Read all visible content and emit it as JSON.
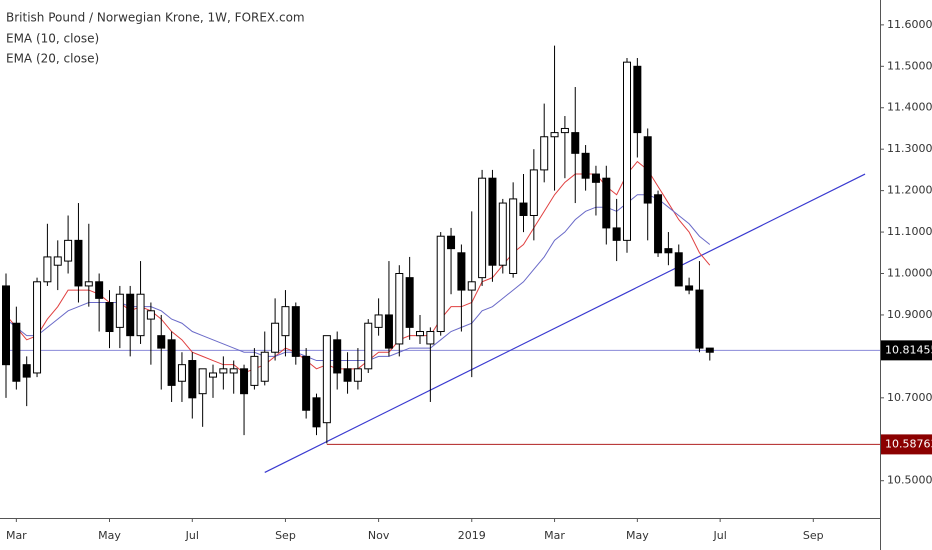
{
  "chart_data": {
    "type": "candlestick",
    "title": "British Pound / Norwegian Krone, 1W, FOREX.com",
    "categories": [
      null,
      "Mar",
      null,
      null,
      null,
      null,
      null,
      null,
      null,
      null,
      "May",
      null,
      null,
      null,
      null,
      null,
      null,
      null,
      "Jul",
      null,
      null,
      null,
      null,
      null,
      null,
      null,
      null,
      "Sep",
      null,
      null,
      null,
      null,
      null,
      null,
      null,
      null,
      "Nov",
      null,
      null,
      null,
      null,
      null,
      null,
      null,
      null,
      "2019",
      null,
      null,
      null,
      null,
      null,
      null,
      null,
      "Mar",
      null,
      null,
      null,
      null,
      null,
      null,
      null,
      "May",
      null,
      null,
      null,
      null,
      null,
      null,
      null,
      "Jul",
      null,
      null,
      null,
      null,
      null,
      null,
      null,
      null,
      "Sep",
      null,
      null,
      null,
      null,
      null
    ],
    "open": [
      10.97,
      10.88,
      10.78,
      10.76,
      10.98,
      11.02,
      11.03,
      11.08,
      10.97,
      10.98,
      10.93,
      10.87,
      10.95,
      10.85,
      10.89,
      10.85,
      10.84,
      10.74,
      10.79,
      10.71,
      10.75,
      10.76,
      10.76,
      10.77,
      10.73,
      10.74,
      10.81,
      10.85,
      10.92,
      10.8,
      10.7,
      10.64,
      10.84,
      10.77,
      10.74,
      10.77,
      10.87,
      10.9,
      10.83,
      10.99,
      10.85,
      10.83,
      10.86,
      11.09,
      11.05,
      10.96,
      10.99,
      11.23,
      11.02,
      11.0,
      11.17,
      11.14,
      11.25,
      11.33,
      11.34,
      11.34,
      11.29,
      11.24,
      11.23,
      11.11,
      11.08,
      11.5,
      11.33,
      11.19,
      11.06,
      11.05,
      10.97,
      10.96,
      10.82,
      null,
      null,
      null,
      null,
      null,
      null,
      null,
      null,
      null,
      null,
      null,
      null,
      null,
      null,
      null
    ],
    "high": [
      11.0,
      10.92,
      10.8,
      10.99,
      11.12,
      11.08,
      11.14,
      11.17,
      11.12,
      11.0,
      10.96,
      10.97,
      10.97,
      11.03,
      10.93,
      10.9,
      10.86,
      10.81,
      10.81,
      10.77,
      10.78,
      10.8,
      10.79,
      10.78,
      10.82,
      10.86,
      10.94,
      10.96,
      10.93,
      10.82,
      10.71,
      10.85,
      10.86,
      10.81,
      10.82,
      10.89,
      10.94,
      11.03,
      11.02,
      11.04,
      10.9,
      10.87,
      11.1,
      11.11,
      11.07,
      11.15,
      11.25,
      11.25,
      11.18,
      11.22,
      11.24,
      11.3,
      11.41,
      11.55,
      11.38,
      11.45,
      11.31,
      11.26,
      11.26,
      11.18,
      11.52,
      11.52,
      11.35,
      11.2,
      11.1,
      11.07,
      10.99,
      11.03,
      10.82,
      null,
      null,
      null,
      null,
      null,
      null,
      null,
      null,
      null,
      null,
      null,
      null,
      null,
      null,
      null
    ],
    "low": [
      10.7,
      10.72,
      10.68,
      10.75,
      10.97,
      10.96,
      11.0,
      10.93,
      10.92,
      10.86,
      10.82,
      10.82,
      10.8,
      10.83,
      10.78,
      10.72,
      10.69,
      10.69,
      10.65,
      10.63,
      10.7,
      10.72,
      10.71,
      10.61,
      10.72,
      10.73,
      10.79,
      10.8,
      10.78,
      10.65,
      10.61,
      10.59,
      10.72,
      10.71,
      10.72,
      10.76,
      10.85,
      10.8,
      10.8,
      10.84,
      10.83,
      10.69,
      10.85,
      10.95,
      10.86,
      10.75,
      10.97,
      10.98,
      11.0,
      10.99,
      11.1,
      11.08,
      11.22,
      11.2,
      11.23,
      11.17,
      11.2,
      11.14,
      11.07,
      11.03,
      11.05,
      11.28,
      11.08,
      11.04,
      11.02,
      10.97,
      10.95,
      10.81,
      10.79,
      null,
      null,
      null,
      null,
      null,
      null,
      null,
      null,
      null,
      null,
      null,
      null,
      null,
      null,
      null
    ],
    "close": [
      10.78,
      10.74,
      10.75,
      10.98,
      11.04,
      11.04,
      11.08,
      10.97,
      10.98,
      10.94,
      10.86,
      10.95,
      10.85,
      10.95,
      10.91,
      10.82,
      10.73,
      10.78,
      10.7,
      10.77,
      10.76,
      10.77,
      10.77,
      10.71,
      10.8,
      10.81,
      10.88,
      10.92,
      10.8,
      10.67,
      10.63,
      10.85,
      10.76,
      10.74,
      10.77,
      10.88,
      10.9,
      10.82,
      11.0,
      10.87,
      10.86,
      10.86,
      11.09,
      11.06,
      10.96,
      10.98,
      11.23,
      11.02,
      11.17,
      11.18,
      11.14,
      11.25,
      11.33,
      11.34,
      11.35,
      11.29,
      11.23,
      11.22,
      11.11,
      11.08,
      11.51,
      11.34,
      11.17,
      11.05,
      11.05,
      10.97,
      10.96,
      10.82,
      10.81,
      null,
      null,
      null,
      null,
      null,
      null,
      null,
      null,
      null,
      null,
      null,
      null,
      null,
      null,
      null
    ],
    "up_color": "#ffffff",
    "down_color": "#000000",
    "series": [
      {
        "name": "EMA (10, close)",
        "color": "#e04040",
        "values": [
          10.9,
          10.87,
          10.84,
          10.85,
          10.89,
          10.92,
          10.96,
          10.96,
          10.96,
          10.95,
          10.93,
          10.93,
          10.91,
          10.92,
          10.91,
          10.89,
          10.86,
          10.84,
          10.81,
          10.8,
          10.79,
          10.78,
          10.78,
          10.76,
          10.77,
          10.78,
          10.8,
          10.82,
          10.81,
          10.79,
          10.77,
          10.78,
          10.77,
          10.77,
          10.77,
          10.79,
          10.81,
          10.81,
          10.84,
          10.85,
          10.85,
          10.85,
          10.89,
          10.92,
          10.92,
          10.93,
          10.98,
          10.99,
          11.02,
          11.05,
          11.07,
          11.11,
          11.15,
          11.19,
          11.22,
          11.24,
          11.24,
          11.24,
          11.21,
          11.19,
          11.24,
          11.27,
          11.25,
          11.21,
          11.17,
          11.13,
          11.1,
          11.05,
          11.02,
          null,
          null,
          null,
          null,
          null,
          null,
          null,
          null,
          null,
          null,
          null,
          null,
          null,
          null,
          null
        ]
      },
      {
        "name": "EMA (20, close)",
        "color": "#6a6ac8",
        "values": [
          10.89,
          10.87,
          10.85,
          10.85,
          10.87,
          10.89,
          10.91,
          10.92,
          10.93,
          10.93,
          10.93,
          10.93,
          10.92,
          10.92,
          10.92,
          10.91,
          10.89,
          10.88,
          10.86,
          10.85,
          10.84,
          10.83,
          10.82,
          10.81,
          10.81,
          10.8,
          10.8,
          10.81,
          10.81,
          10.8,
          10.79,
          10.79,
          10.79,
          10.79,
          10.79,
          10.79,
          10.8,
          10.8,
          10.81,
          10.82,
          10.82,
          10.82,
          10.84,
          10.86,
          10.87,
          10.88,
          10.91,
          10.92,
          10.94,
          10.96,
          10.98,
          11.01,
          11.04,
          11.08,
          11.1,
          11.13,
          11.15,
          11.16,
          11.16,
          11.15,
          11.17,
          11.19,
          11.19,
          11.18,
          11.16,
          11.14,
          11.12,
          11.09,
          11.07,
          null,
          null,
          null,
          null,
          null,
          null,
          null,
          null,
          null,
          null,
          null,
          null,
          null,
          null,
          null
        ]
      }
    ],
    "trendline": {
      "color": "#3a3ad0",
      "start": {
        "x": 25,
        "y": 10.52
      },
      "end": {
        "x": 83,
        "y": 11.24
      }
    },
    "price_lines": [
      {
        "value": 10.81455,
        "color": "#8a8ad8",
        "tag_color": "#000000",
        "from": 0
      },
      {
        "value": 10.58763,
        "color": "#b02020",
        "tag_color": "#8b0000",
        "from": 31
      }
    ],
    "ylim": [
      10.41,
      11.66
    ],
    "yticks": [
      {
        "value": 10.5,
        "label": "10.50000"
      },
      {
        "value": 10.6,
        "label": "10.60000"
      },
      {
        "value": 10.7,
        "label": "10.70000"
      },
      {
        "value": 10.8,
        "label": "10.80000"
      },
      {
        "value": 10.9,
        "label": "10.90000"
      },
      {
        "value": 11.0,
        "label": "11.00000"
      },
      {
        "value": 11.1,
        "label": "11.10000"
      },
      {
        "value": 11.2,
        "label": "11.20000"
      },
      {
        "value": 11.3,
        "label": "11.30000"
      },
      {
        "value": 11.4,
        "label": "11.40000"
      },
      {
        "value": 11.5,
        "label": "11.50000"
      },
      {
        "value": 11.6,
        "label": "11.60000"
      }
    ]
  }
}
